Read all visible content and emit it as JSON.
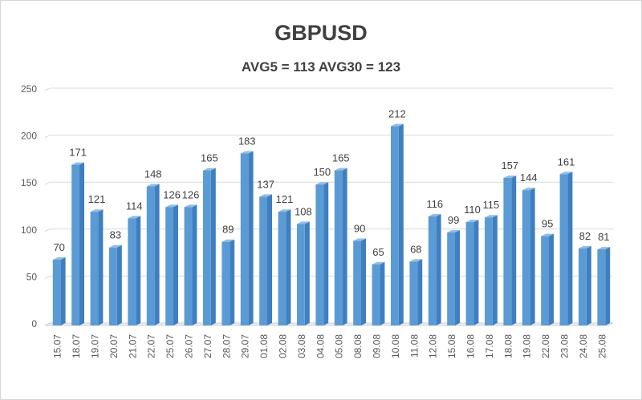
{
  "chart_data": {
    "type": "bar",
    "title": "GBPUSD",
    "subtitle": "AVG5 = 113 AVG30 = 123",
    "xlabel": "",
    "ylabel": "",
    "ylim": [
      0,
      250
    ],
    "yticks": [
      0,
      50,
      100,
      150,
      200,
      250
    ],
    "grid": true,
    "legend": "none",
    "bar_color": "#5b9bd5",
    "categories": [
      "15.07",
      "18.07",
      "19.07",
      "20.07",
      "21.07",
      "22.07",
      "25.07",
      "26.07",
      "27.07",
      "28.07",
      "29.07",
      "01.08",
      "02.08",
      "03.08",
      "04.08",
      "05.08",
      "08.08",
      "09.08",
      "10.08",
      "11.08",
      "12.08",
      "15.08",
      "16.08",
      "17.08",
      "18.08",
      "19.08",
      "22.08",
      "23.08",
      "24.08",
      "25.08"
    ],
    "values": [
      70,
      171,
      121,
      83,
      114,
      148,
      126,
      126,
      165,
      89,
      183,
      137,
      121,
      108,
      150,
      165,
      90,
      65,
      212,
      68,
      116,
      99,
      110,
      115,
      157,
      144,
      95,
      161,
      82,
      81
    ]
  }
}
